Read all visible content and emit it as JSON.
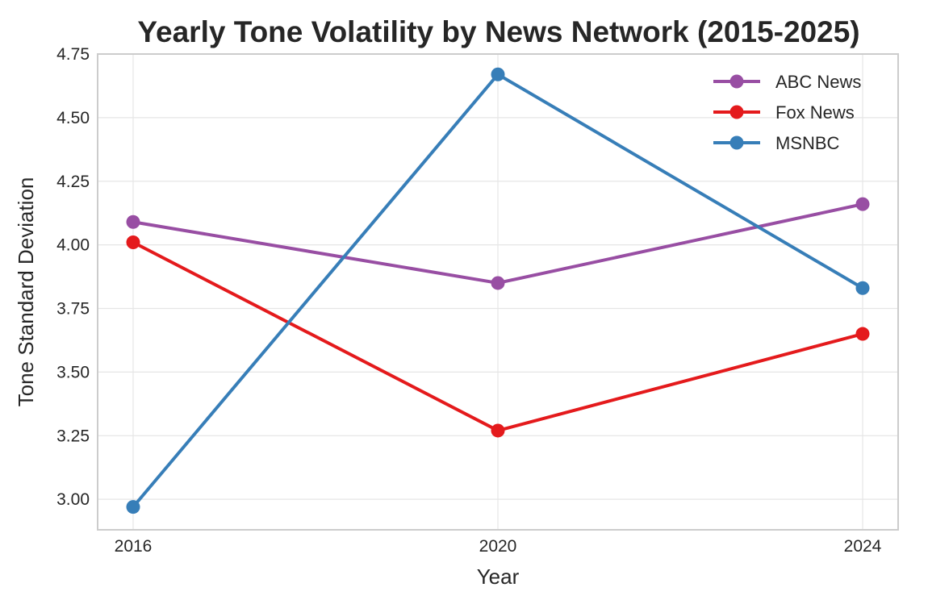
{
  "chart_data": {
    "type": "line",
    "title": "Yearly Tone Volatility by News Network (2015-2025)",
    "xlabel": "Year",
    "ylabel": "Tone Standard Deviation",
    "categories": [
      "2016",
      "2020",
      "2024"
    ],
    "yticks": [
      "3.00",
      "3.25",
      "3.50",
      "3.75",
      "4.00",
      "4.25",
      "4.50",
      "4.75"
    ],
    "ylim": [
      2.88,
      4.75
    ],
    "grid": true,
    "legend_position": "top-right",
    "series": [
      {
        "name": "ABC News",
        "color": "#984ea3",
        "values": [
          4.09,
          3.85,
          4.16
        ]
      },
      {
        "name": "Fox News",
        "color": "#e41a1c",
        "values": [
          4.01,
          3.27,
          3.65
        ]
      },
      {
        "name": "MSNBC",
        "color": "#377eb8",
        "values": [
          2.97,
          4.67,
          3.83
        ]
      }
    ]
  }
}
